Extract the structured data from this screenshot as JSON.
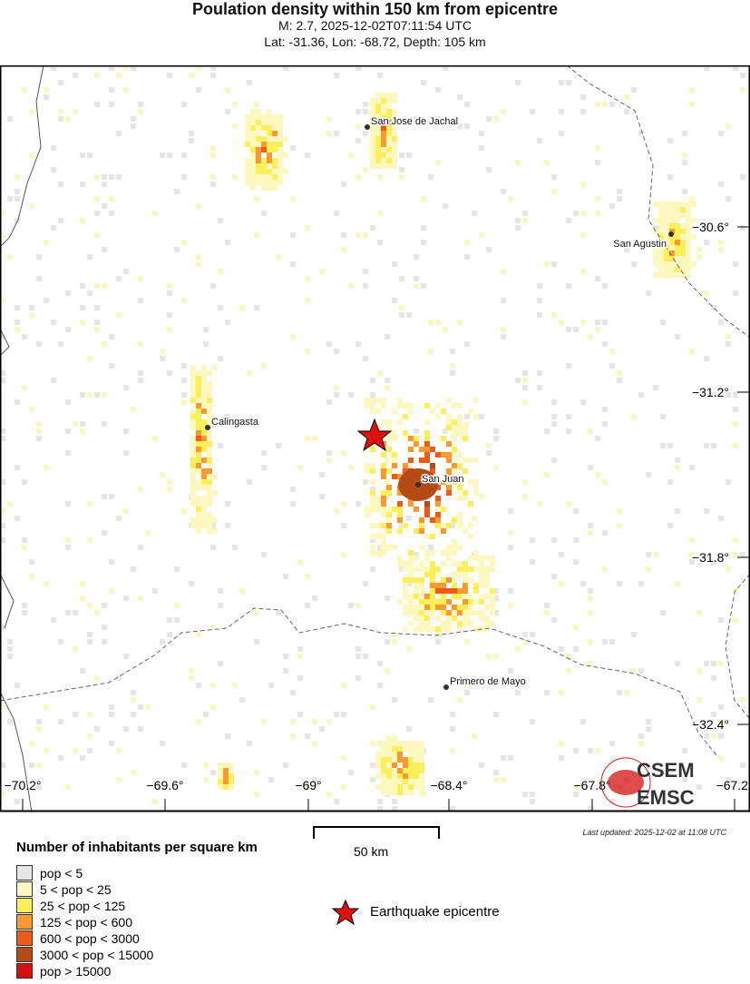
{
  "header": {
    "title": "Poulation density within 150 km from epicentre",
    "subtitle_event": "M: 2.7,  2025-12-02T07:11:54 UTC",
    "subtitle_location": "Lat: -31.36, Lon: -68.72, Depth: 105 km"
  },
  "map": {
    "lon_ticks": [
      "−70.2°",
      "−69.6°",
      "−69°",
      "−68.4°",
      "−67.8°",
      "−67.2"
    ],
    "lat_ticks": [
      "−30.6°",
      "−31.2°",
      "−31.8°",
      "−32.4°"
    ],
    "cities": [
      {
        "name": "San Jose de Jachal"
      },
      {
        "name": "San Agustin"
      },
      {
        "name": "Calingasta"
      },
      {
        "name": "San Juan"
      },
      {
        "name": "Primero de Mayo"
      }
    ],
    "epicentre": {
      "lat": -31.36,
      "lon": -68.72,
      "color": "#e01010"
    },
    "logo": {
      "top": "CSEM",
      "bottom": "EMSC",
      "color": "#d42020"
    }
  },
  "scale": {
    "label": "50 km"
  },
  "updated": "Last updated: 2025-12-02 at 11:08 UTC",
  "legend": {
    "title": "Number of inhabitants per square km",
    "items": [
      {
        "label": "pop < 5",
        "color": "#e6e6e6"
      },
      {
        "label": "5 < pop < 25",
        "color": "#fdf7c0"
      },
      {
        "label": "25 < pop < 125",
        "color": "#fbf05a"
      },
      {
        "label": "125 < pop < 600",
        "color": "#f89a30"
      },
      {
        "label": "600 < pop < 3000",
        "color": "#f05a18"
      },
      {
        "label": "3000 < pop < 15000",
        "color": "#b44a14"
      },
      {
        "label": "pop > 15000",
        "color": "#d41010"
      }
    ],
    "epicentre_label": "Earthquake epicentre"
  }
}
